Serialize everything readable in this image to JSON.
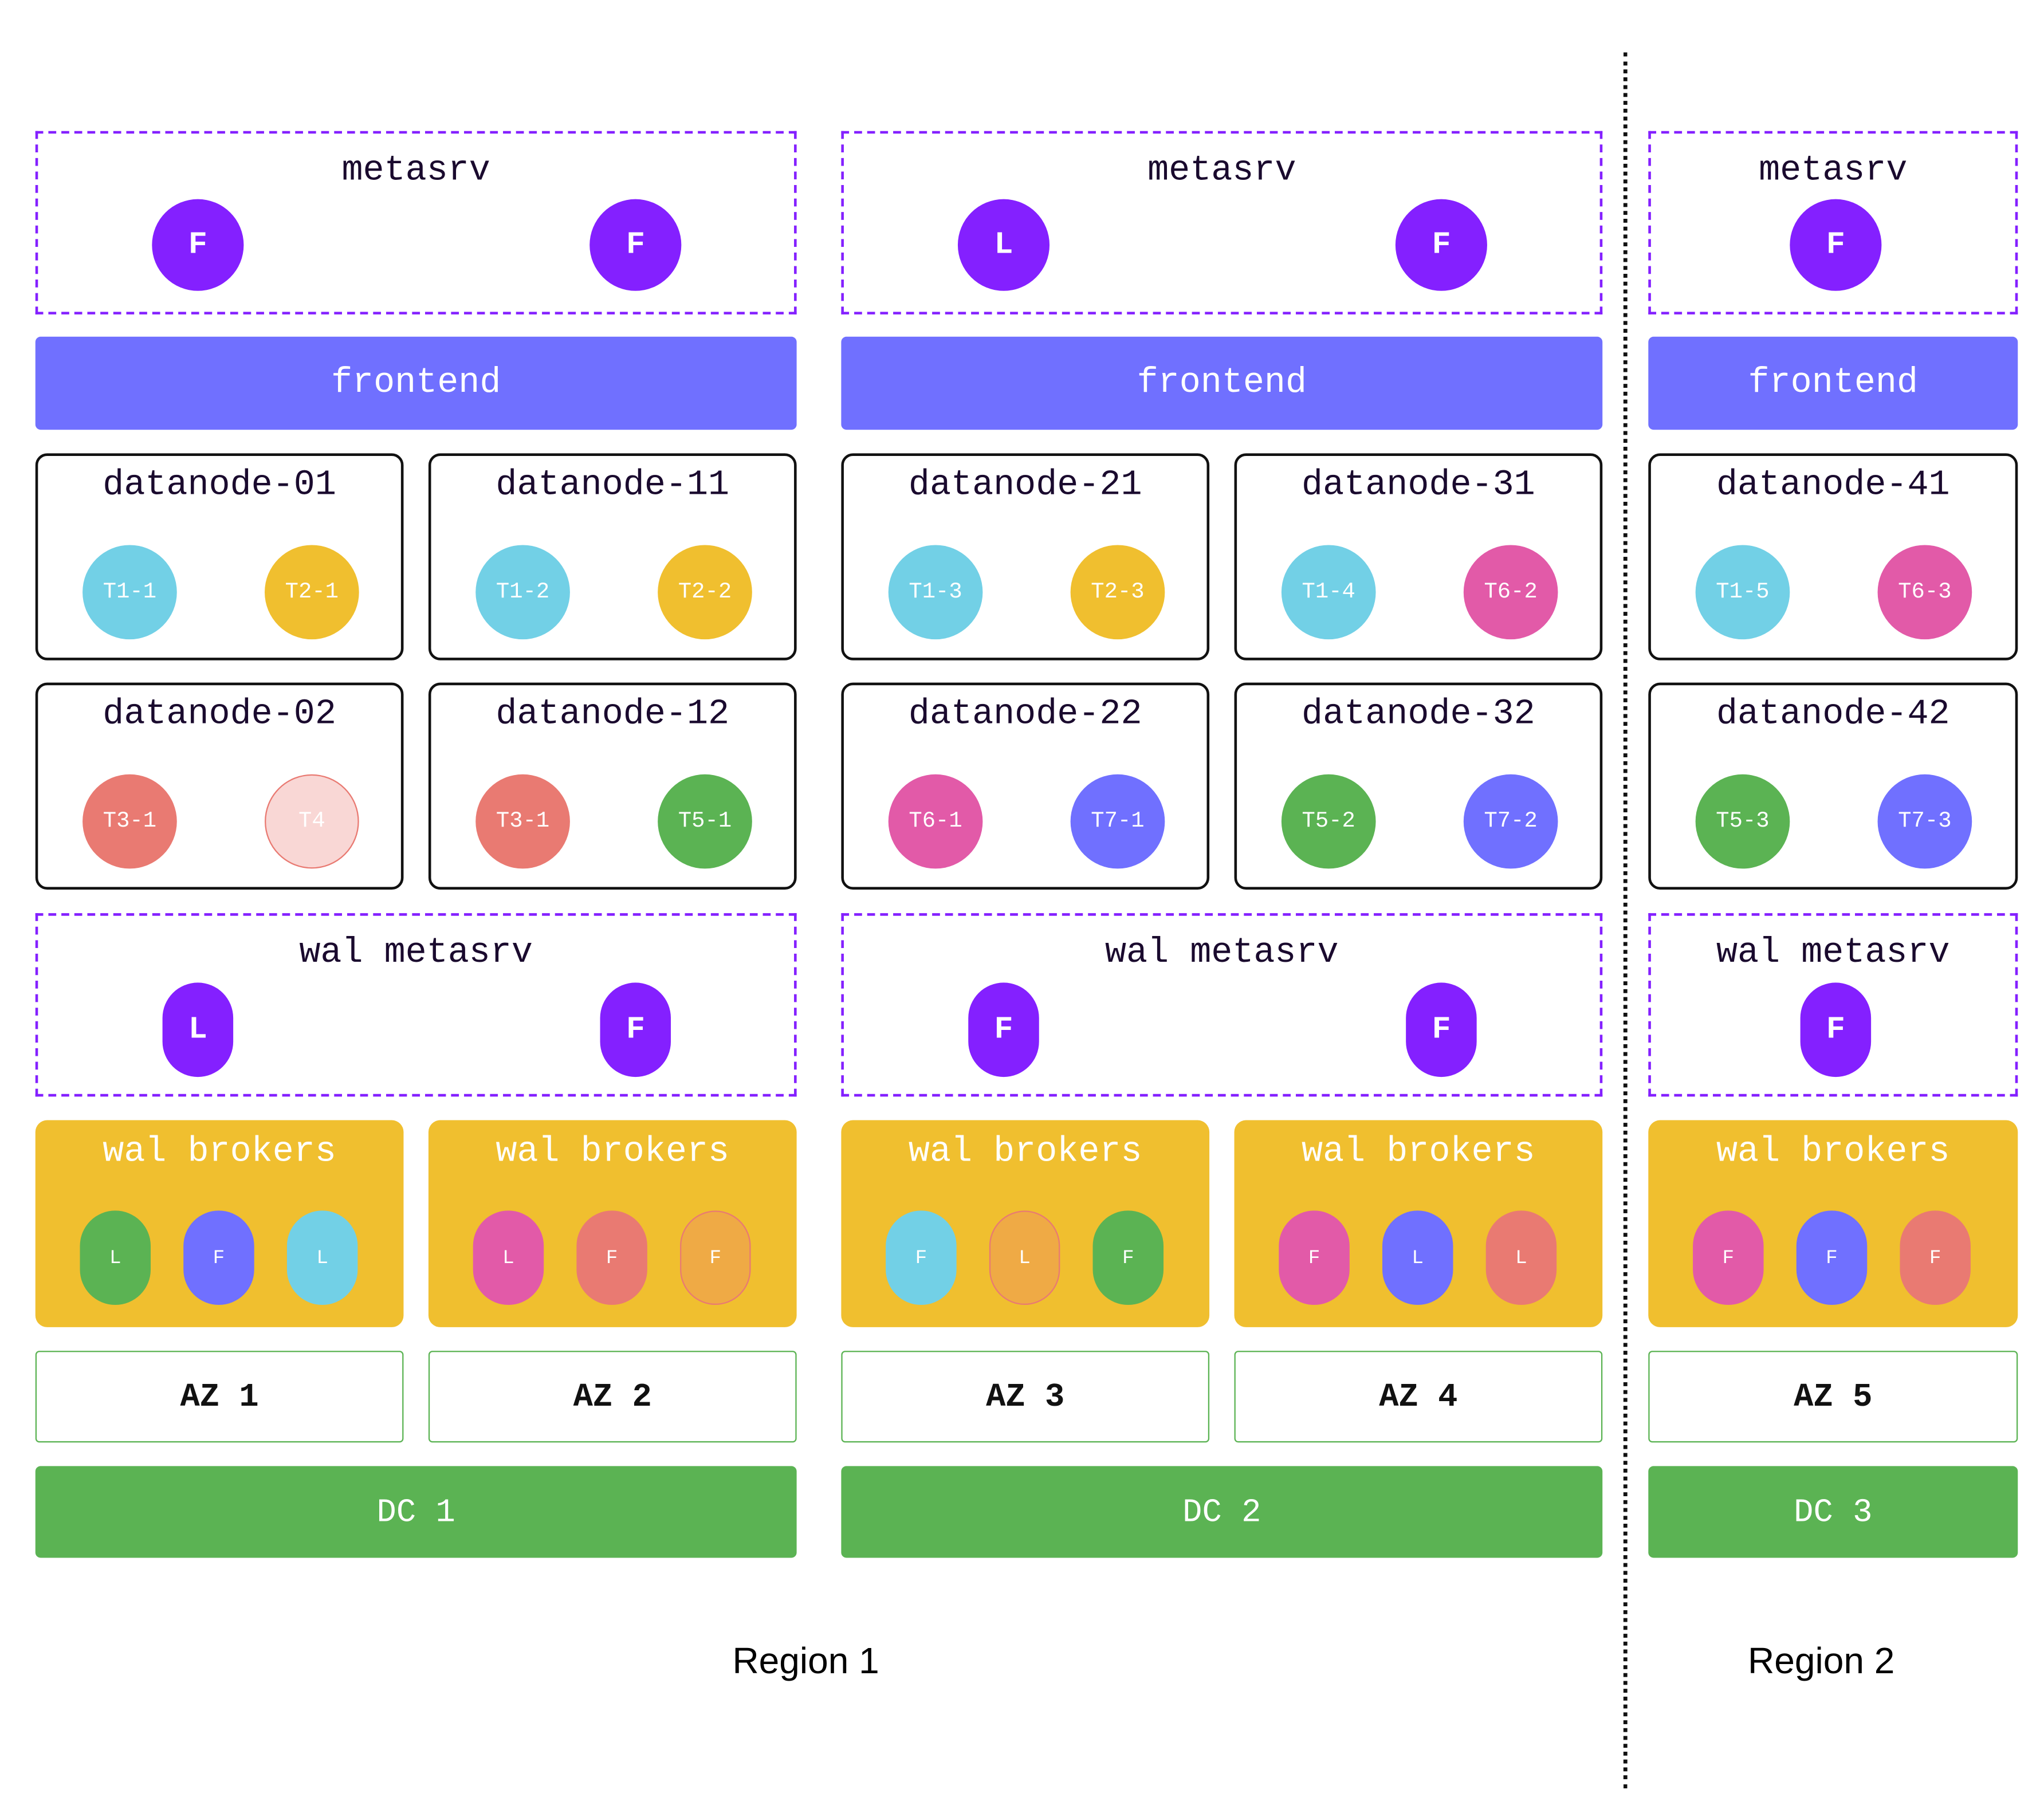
{
  "colors": {
    "purple": "#8420FF",
    "frontend": "#7070FF",
    "cyan": "#72D0E6",
    "yellow": "#F0BF2F",
    "red": "#E97A72",
    "pink": "#E25AA8",
    "green": "#5BB353",
    "blue": "#7070FF",
    "light_red": "#F9D7D5",
    "orange": "#EFAA45"
  },
  "sections": [
    {
      "metasrv": {
        "label": "metasrv",
        "nodes": [
          "F",
          "F"
        ]
      },
      "frontend": "frontend",
      "datanodes": [
        {
          "name": "datanode-01",
          "tablets": [
            {
              "label": "T1-1",
              "color": "cyan"
            },
            {
              "label": "T2-1",
              "color": "yellow"
            }
          ]
        },
        {
          "name": "datanode-11",
          "tablets": [
            {
              "label": "T1-2",
              "color": "cyan"
            },
            {
              "label": "T2-2",
              "color": "yellow"
            }
          ]
        },
        {
          "name": "datanode-02",
          "tablets": [
            {
              "label": "T3-1",
              "color": "red"
            },
            {
              "label": "T4",
              "color": "light_red",
              "outline": "red"
            }
          ]
        },
        {
          "name": "datanode-12",
          "tablets": [
            {
              "label": "T3-1",
              "color": "red"
            },
            {
              "label": "T5-1",
              "color": "green"
            }
          ]
        }
      ],
      "wal_metasrv": {
        "label": "wal metasrv",
        "nodes": [
          "L",
          "F"
        ]
      },
      "wal_brokers": [
        {
          "label": "wal brokers",
          "nodes": [
            {
              "label": "L",
              "color": "green"
            },
            {
              "label": "F",
              "color": "blue"
            },
            {
              "label": "L",
              "color": "cyan"
            }
          ]
        },
        {
          "label": "wal brokers",
          "nodes": [
            {
              "label": "L",
              "color": "pink"
            },
            {
              "label": "F",
              "color": "red"
            },
            {
              "label": "F",
              "color": "orange",
              "outline": "red"
            }
          ]
        }
      ],
      "azs": [
        "AZ 1",
        "AZ 2"
      ],
      "dc": "DC 1"
    },
    {
      "metasrv": {
        "label": "metasrv",
        "nodes": [
          "L",
          "F"
        ]
      },
      "frontend": "frontend",
      "datanodes": [
        {
          "name": "datanode-21",
          "tablets": [
            {
              "label": "T1-3",
              "color": "cyan"
            },
            {
              "label": "T2-3",
              "color": "yellow"
            }
          ]
        },
        {
          "name": "datanode-31",
          "tablets": [
            {
              "label": "T1-4",
              "color": "cyan"
            },
            {
              "label": "T6-2",
              "color": "pink"
            }
          ]
        },
        {
          "name": "datanode-22",
          "tablets": [
            {
              "label": "T6-1",
              "color": "pink"
            },
            {
              "label": "T7-1",
              "color": "blue"
            }
          ]
        },
        {
          "name": "datanode-32",
          "tablets": [
            {
              "label": "T5-2",
              "color": "green"
            },
            {
              "label": "T7-2",
              "color": "blue"
            }
          ]
        }
      ],
      "wal_metasrv": {
        "label": "wal metasrv",
        "nodes": [
          "F",
          "F"
        ]
      },
      "wal_brokers": [
        {
          "label": "wal brokers",
          "nodes": [
            {
              "label": "F",
              "color": "cyan"
            },
            {
              "label": "L",
              "color": "orange",
              "outline": "red"
            },
            {
              "label": "F",
              "color": "green"
            }
          ]
        },
        {
          "label": "wal brokers",
          "nodes": [
            {
              "label": "F",
              "color": "pink"
            },
            {
              "label": "L",
              "color": "blue"
            },
            {
              "label": "L",
              "color": "red"
            }
          ]
        }
      ],
      "azs": [
        "AZ 3",
        "AZ 4"
      ],
      "dc": "DC 2"
    },
    {
      "metasrv": {
        "label": "metasrv",
        "nodes": [
          "F"
        ]
      },
      "frontend": "frontend",
      "datanodes": [
        {
          "name": "datanode-41",
          "tablets": [
            {
              "label": "T1-5",
              "color": "cyan"
            },
            {
              "label": "T6-3",
              "color": "pink"
            }
          ]
        },
        {
          "name": "datanode-42",
          "tablets": [
            {
              "label": "T5-3",
              "color": "green"
            },
            {
              "label": "T7-3",
              "color": "blue"
            }
          ]
        }
      ],
      "wal_metasrv": {
        "label": "wal metasrv",
        "nodes": [
          "F"
        ]
      },
      "wal_brokers": [
        {
          "label": "wal brokers",
          "nodes": [
            {
              "label": "F",
              "color": "pink"
            },
            {
              "label": "F",
              "color": "blue"
            },
            {
              "label": "F",
              "color": "red"
            }
          ]
        }
      ],
      "azs": [
        "AZ 5"
      ],
      "dc": "DC 3"
    }
  ],
  "regions": [
    "Region 1",
    "Region 2"
  ]
}
